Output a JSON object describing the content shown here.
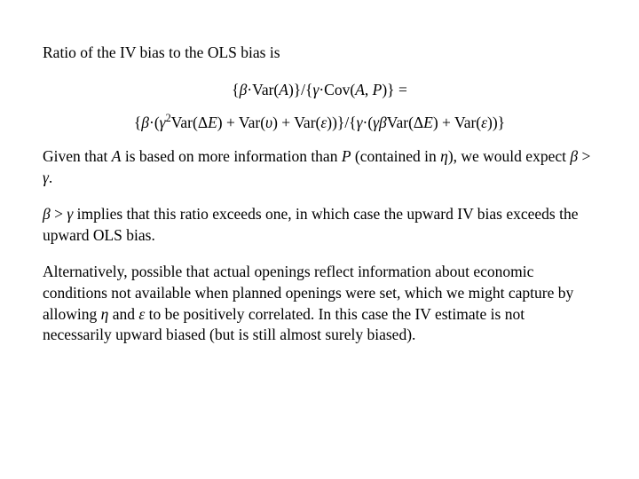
{
  "intro": "Ratio of the IV bias to the OLS bias is",
  "eq1_part1": "{",
  "eq1_beta": "β",
  "eq1_part2": "·Var(",
  "eq1_A": "A",
  "eq1_part3": ")}/{",
  "eq1_gamma": "γ",
  "eq1_part4": "·Cov(",
  "eq1_A2": "A",
  "eq1_comma": ", ",
  "eq1_P": "P",
  "eq1_part5": ")} =",
  "eq2_part1": "{",
  "eq2_beta": "β",
  "eq2_part2": "·(",
  "eq2_gamma": "γ",
  "eq2_sup2": "2",
  "eq2_part3": "Var(Δ",
  "eq2_E": "E",
  "eq2_part4": ") + Var(",
  "eq2_ups": "υ",
  "eq2_part5": ") + Var(",
  "eq2_eps": "ε",
  "eq2_part6": "))}/{",
  "eq2_gamma2": "γ",
  "eq2_part7": "·(",
  "eq2_gamma3": "γβ",
  "eq2_part8": "Var(Δ",
  "eq2_E2": "E",
  "eq2_part9": ") + Var(",
  "eq2_eps2": "ε",
  "eq2_part10": "))}",
  "p2_a": "Given that ",
  "p2_A": "A",
  "p2_b": " is based on more information than ",
  "p2_P": "P",
  "p2_c": " (contained in ",
  "p2_eta": "η",
  "p2_d": "), we would expect ",
  "p2_beta": "β",
  "p2_e": " > ",
  "p2_gamma": "γ",
  "p2_f": ".",
  "p3_beta": "β",
  "p3_a": " > ",
  "p3_gamma": "γ",
  "p3_b": " implies that this ratio exceeds one, in which case the upward IV bias exceeds the upward OLS bias.",
  "p4_a": "Alternatively, possible that actual openings reflect information about economic conditions not available when planned openings were set, which we might capture by allowing ",
  "p4_eta": "η",
  "p4_b": " and ",
  "p4_eps": "ε",
  "p4_c": " to be positively correlated.  In this case the IV estimate is not necessarily upward biased (but is still almost surely biased)."
}
